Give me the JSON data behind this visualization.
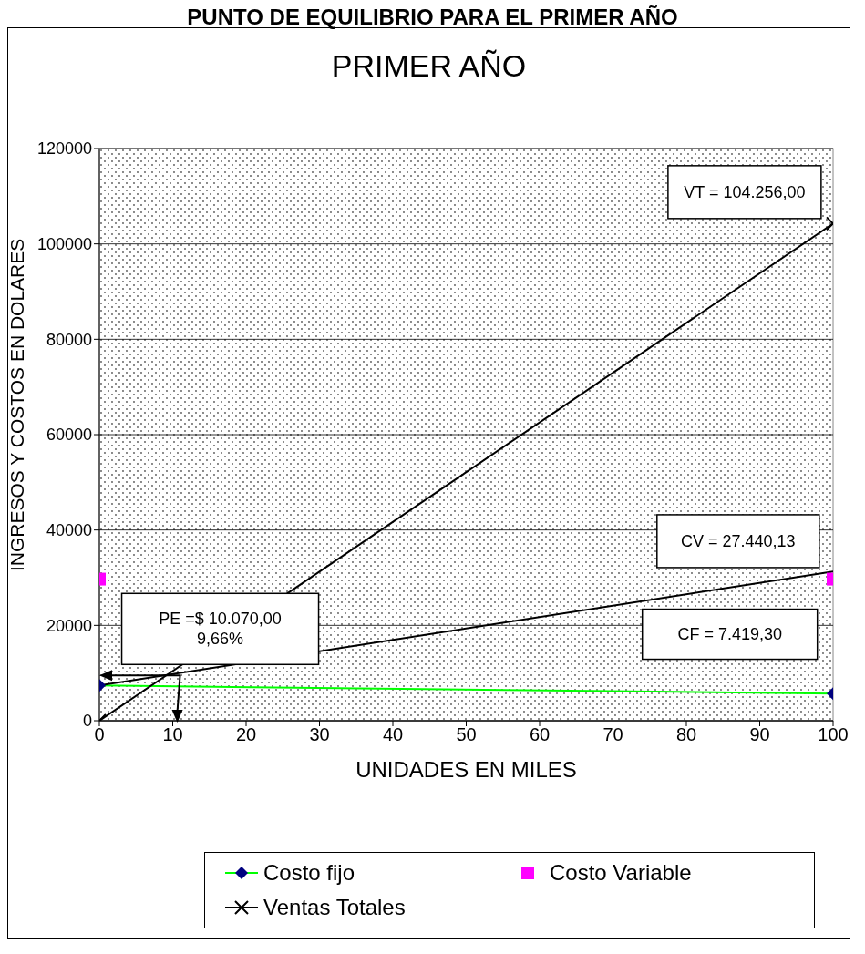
{
  "chart_data": {
    "type": "line",
    "title": "PUNTO DE EQUILIBRIO PARA EL PRIMER AÑO",
    "subtitle": "PRIMER  AÑO",
    "xlabel": "UNIDADES EN MILES",
    "ylabel": "INGRESOS Y COSTOS EN DOLARES",
    "x": [
      0,
      100
    ],
    "series": [
      {
        "name": "Costo fijo",
        "marker": "diamond",
        "color": "#00ff00",
        "values": [
          7400,
          5700
        ]
      },
      {
        "name": "Costo Variable",
        "type": "scatter",
        "marker": "square",
        "color": "#ff00ff",
        "values": [
          29700,
          29700
        ]
      },
      {
        "name": "Ventas Totales",
        "marker": "cross",
        "color": "#000000",
        "values": [
          0,
          104256
        ]
      },
      {
        "marker": "none",
        "color": "#000000",
        "values": [
          7400,
          31300
        ]
      }
    ],
    "annotations": [
      "VT = 104.256,00",
      "CV = 27.440,13",
      "CF = 7.419,30",
      {
        "text": "PE =$ 10.070,00\n9,66%",
        "x": 11,
        "y": 9500
      }
    ],
    "xlim": [
      0,
      100
    ],
    "xticks": [
      0,
      10,
      20,
      30,
      40,
      50,
      60,
      70,
      80,
      90,
      100
    ],
    "ylim": [
      0,
      120000
    ],
    "yticks": [
      0,
      20000,
      40000,
      60000,
      80000,
      100000,
      120000
    ],
    "grid": "y",
    "legend": "bottom"
  }
}
